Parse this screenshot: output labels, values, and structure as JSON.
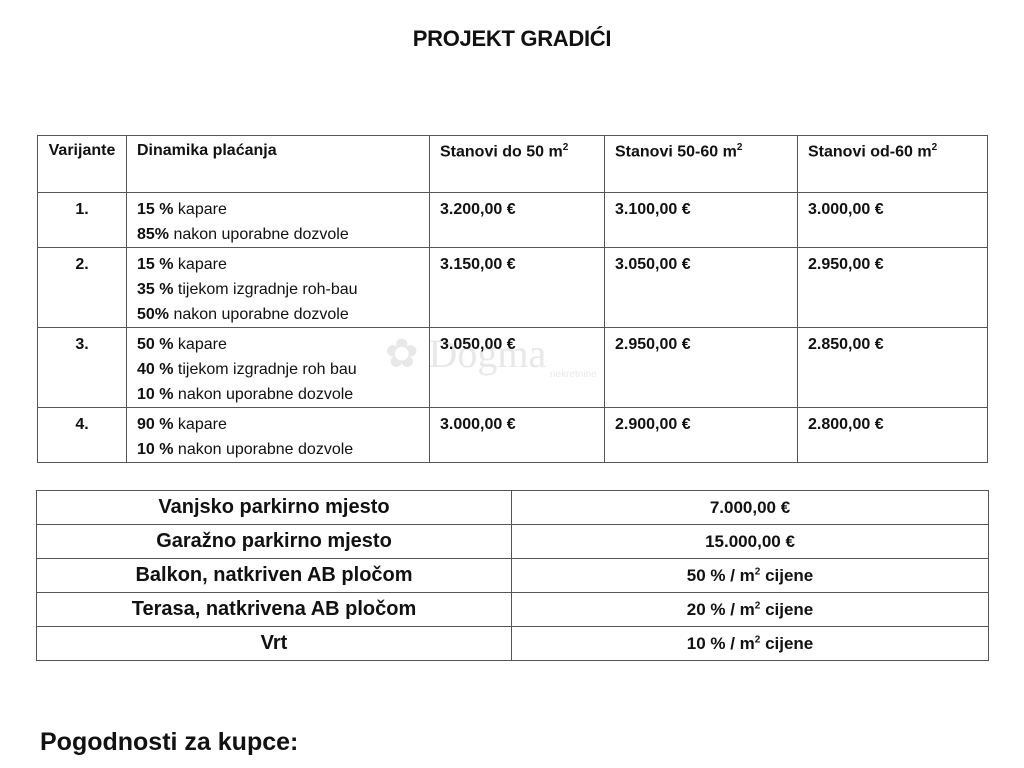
{
  "title": "PROJEKT GRADIĆI",
  "pricing_table": {
    "headers": [
      "Varijante",
      "Dinamika plaćanja",
      "Stanovi do 50 m",
      "Stanovi 50-60 m",
      "Stanovi od-60 m"
    ],
    "superscript": "2",
    "rows": [
      {
        "variant": "1.",
        "payments": [
          {
            "pct": "15 %",
            "text": " kapare"
          },
          {
            "pct": "85%",
            "text": " nakon uporabne dozvole"
          }
        ],
        "prices": [
          "3.200,00 €",
          "3.100,00 €",
          "3.000,00 €"
        ]
      },
      {
        "variant": "2.",
        "payments": [
          {
            "pct": "15 %",
            "text": " kapare"
          },
          {
            "pct": "35 %",
            "text": " tijekom izgradnje roh-bau"
          },
          {
            "pct": "50%",
            "text": " nakon uporabne dozvole"
          }
        ],
        "prices": [
          "3.150,00 €",
          "3.050,00 €",
          "2.950,00 €"
        ]
      },
      {
        "variant": "3.",
        "payments": [
          {
            "pct": "50 %",
            "text": " kapare"
          },
          {
            "pct": "40 %",
            "text": " tijekom izgradnje roh bau"
          },
          {
            "pct": "10 %",
            "text": " nakon uporabne dozvole"
          }
        ],
        "prices": [
          "3.050,00 €",
          "2.950,00 €",
          "2.850,00 €"
        ]
      },
      {
        "variant": "4.",
        "payments": [
          {
            "pct": "90 %",
            "text": " kapare"
          },
          {
            "pct": "10 %",
            "text": " nakon uporabne dozvole"
          }
        ],
        "prices": [
          "3.000,00 €",
          "2.900,00 €",
          "2.800,00 €"
        ]
      }
    ]
  },
  "extras_table": [
    {
      "label": "Vanjsko parkirno mjesto",
      "value": "7.000,00 €"
    },
    {
      "label": "Garažno parkirno mjesto",
      "value": "15.000,00 €"
    },
    {
      "label": "Balkon, natkriven AB pločom",
      "value_pre": "50 % / m",
      "value_sup": "2",
      "value_post": " cijene"
    },
    {
      "label": "Terasa, natkrivena AB pločom",
      "value_pre": "20 % / m",
      "value_sup": "2",
      "value_post": " cijene"
    },
    {
      "label": "Vrt",
      "value_pre": "10 % / m",
      "value_sup": "2",
      "value_post": " cijene"
    }
  ],
  "footer_heading": "Pogodnosti za kupce:",
  "watermark": {
    "name": "Dogma",
    "sub": "nekretnine"
  }
}
